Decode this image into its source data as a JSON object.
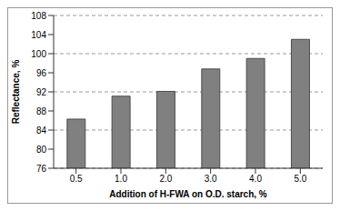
{
  "chart_data": {
    "type": "bar",
    "x_label": "Addition of H-FWA on O.D. starch, %",
    "y_label": "Reflectance, %",
    "categories": [
      "0.5",
      "1.0",
      "2.0",
      "3.0",
      "4.0",
      "5.0"
    ],
    "values": [
      86.3,
      91.1,
      92.1,
      96.8,
      99.0,
      103.0
    ],
    "color": "#808080",
    "ylim": [
      76,
      108
    ],
    "yticks": [
      76,
      80,
      84,
      88,
      92,
      96,
      100,
      104,
      108
    ],
    "grid": true
  }
}
